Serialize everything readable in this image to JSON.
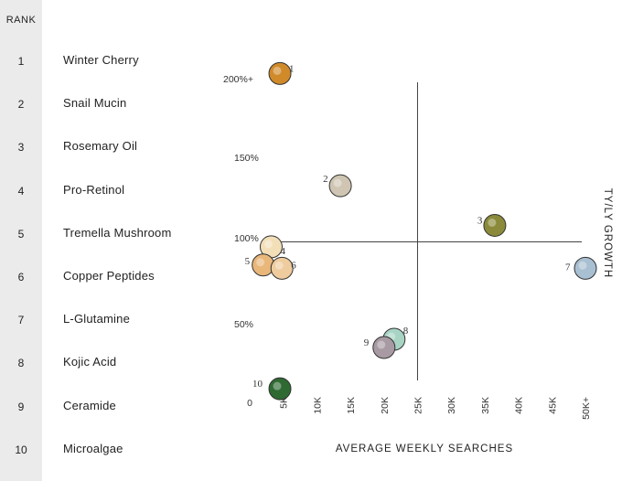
{
  "rank_header": "RANK",
  "ranks": [
    {
      "rank": "1",
      "name": "Winter Cherry"
    },
    {
      "rank": "2",
      "name": "Snail Mucin"
    },
    {
      "rank": "3",
      "name": "Rosemary Oil"
    },
    {
      "rank": "4",
      "name": "Pro-Retinol"
    },
    {
      "rank": "5",
      "name": "Tremella Mushroom"
    },
    {
      "rank": "6",
      "name": "Copper Peptides"
    },
    {
      "rank": "7",
      "name": "L-Glutamine"
    },
    {
      "rank": "8",
      "name": "Kojic Acid"
    },
    {
      "rank": "9",
      "name": "Ceramide"
    },
    {
      "rank": "10",
      "name": "Microalgae"
    }
  ],
  "chart_data": {
    "type": "scatter",
    "xlabel": "AVERAGE WEEKLY SEARCHES",
    "ylabel": "TY/LY GROWTH",
    "x_ticks": [
      "0",
      "5K",
      "10K",
      "15K",
      "20K",
      "25K",
      "30K",
      "35K",
      "40K",
      "45K",
      "50K+"
    ],
    "y_ticks": [
      "50%",
      "100%",
      "150%",
      "200%+"
    ],
    "xlim": [
      0,
      50000
    ],
    "ylim": [
      0,
      200
    ],
    "crosshair": {
      "x": 25000,
      "y": 100
    },
    "points": [
      {
        "label": "1",
        "x": 4500,
        "y": 202,
        "color": "#d08a2a"
      },
      {
        "label": "2",
        "x": 13500,
        "y": 134,
        "color": "#cfc5b2"
      },
      {
        "label": "3",
        "x": 36500,
        "y": 110,
        "color": "#8a8a3a"
      },
      {
        "label": "4",
        "x": 3200,
        "y": 97,
        "color": "#f2dfb8"
      },
      {
        "label": "5",
        "x": 2000,
        "y": 86,
        "color": "#e9b77a"
      },
      {
        "label": "6",
        "x": 4800,
        "y": 84,
        "color": "#efcc9e"
      },
      {
        "label": "7",
        "x": 50000,
        "y": 84,
        "color": "#a9bfd2"
      },
      {
        "label": "8",
        "x": 21500,
        "y": 41,
        "color": "#a8d4c4"
      },
      {
        "label": "9",
        "x": 20000,
        "y": 36,
        "color": "#a89aa3"
      },
      {
        "label": "10",
        "x": 4500,
        "y": 11,
        "color": "#2f6a33"
      }
    ]
  }
}
